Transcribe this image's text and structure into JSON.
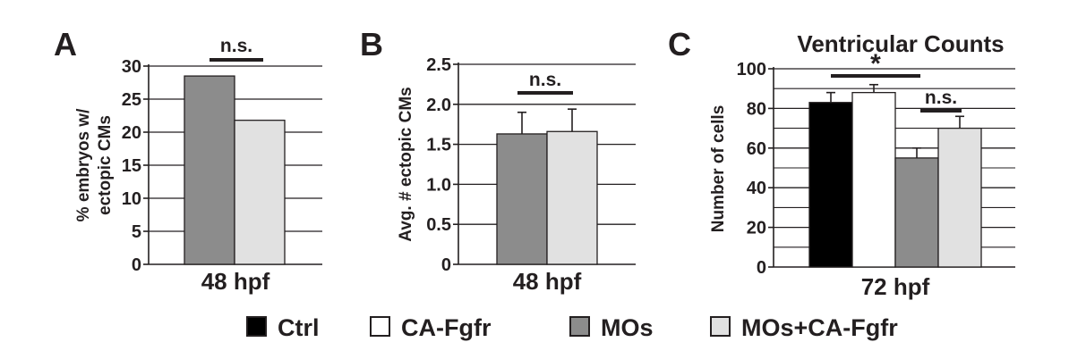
{
  "colors": {
    "Ctrl": "#000000",
    "CA-Fgfr": "#ffffff",
    "MOs": "#8c8c8c",
    "MOs+CA-Fgfr": "#e1e1e1",
    "axis": "#231f20"
  },
  "legend": {
    "position": "bottom",
    "items": [
      {
        "label": "Ctrl",
        "color": "#000000"
      },
      {
        "label": "CA-Fgfr",
        "color": "#ffffff"
      },
      {
        "label": "MOs",
        "color": "#8c8c8c"
      },
      {
        "label": "MOs+CA-Fgfr",
        "color": "#e1e1e1"
      }
    ]
  },
  "chart_data": [
    {
      "type": "bar",
      "panel": "A",
      "title": "",
      "xlabel": "48 hpf",
      "ylabel": "% embryos w/ ectopic CMs",
      "ylabel_lines": [
        "% embryos w/",
        "ectopic CMs"
      ],
      "ylim": [
        0,
        30
      ],
      "yticks": [
        "0",
        "5",
        "10",
        "15",
        "20",
        "25",
        "30"
      ],
      "grid": true,
      "categories": [
        "MOs",
        "MOs+CA-Fgfr"
      ],
      "values": [
        28.5,
        21.8
      ],
      "errors": [
        null,
        null
      ],
      "significance": [
        {
          "label": "n.s.",
          "from": 0,
          "to": 1
        }
      ]
    },
    {
      "type": "bar",
      "panel": "B",
      "title": "",
      "xlabel": "48 hpf",
      "ylabel": "Avg. # ectopic CMs",
      "ylabel_lines": [
        "Avg. # ectopic CMs"
      ],
      "ylim": [
        0,
        2.5
      ],
      "yticks": [
        "0",
        "0.5",
        "1.0",
        "1.5",
        "2.0",
        "2.5"
      ],
      "grid": true,
      "categories": [
        "MOs",
        "MOs+CA-Fgfr"
      ],
      "values": [
        1.63,
        1.66
      ],
      "errors": [
        0.27,
        0.28
      ],
      "significance": [
        {
          "label": "n.s.",
          "from": 0,
          "to": 1
        }
      ]
    },
    {
      "type": "bar",
      "panel": "C",
      "title": "Ventricular Counts",
      "xlabel": "72 hpf",
      "ylabel": "Number of cells",
      "ylabel_lines": [
        "Number of cells"
      ],
      "ylim": [
        0,
        100
      ],
      "yticks": [
        "0",
        "20",
        "40",
        "60",
        "80",
        "100"
      ],
      "grid": true,
      "categories": [
        "Ctrl",
        "CA-Fgfr",
        "MOs",
        "MOs+CA-Fgfr"
      ],
      "values": [
        83,
        88,
        55,
        70
      ],
      "errors": [
        5,
        4,
        5,
        6
      ],
      "significance": [
        {
          "label": "*",
          "from": 0,
          "to": 2
        },
        {
          "label": "n.s.",
          "from": 2,
          "to": 3
        }
      ]
    }
  ]
}
